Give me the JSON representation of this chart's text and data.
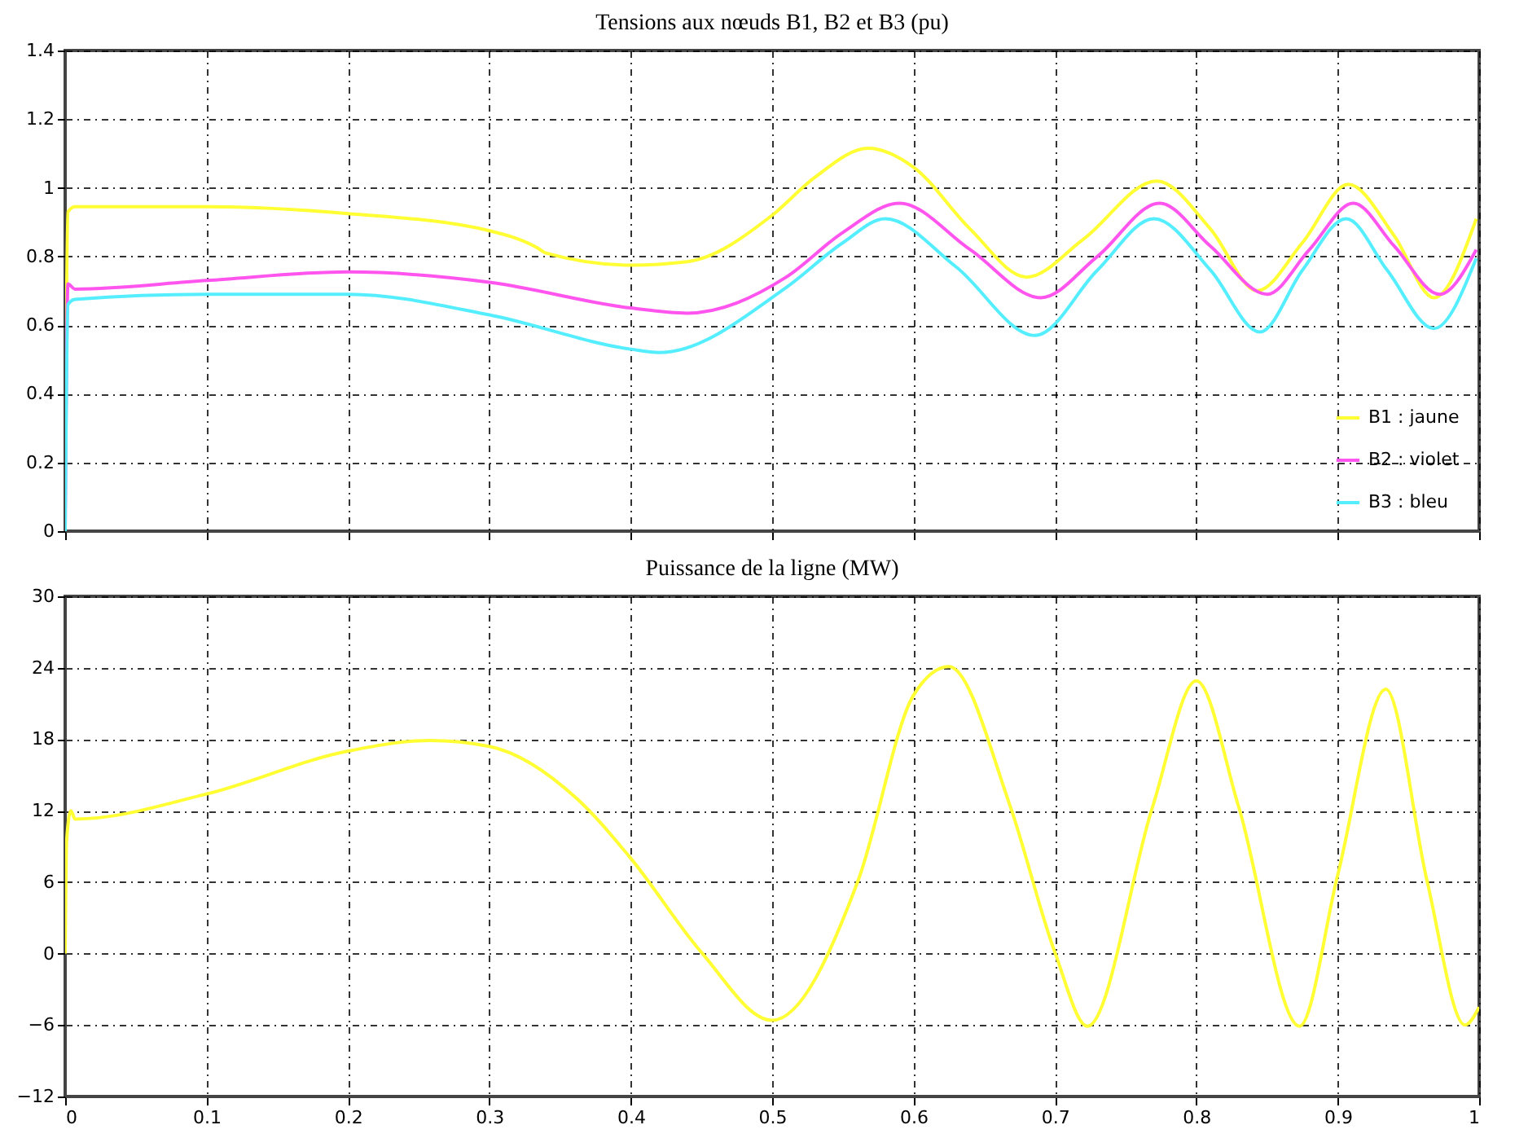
{
  "chart_data": [
    {
      "type": "line",
      "title": "Tensions aux nœuds B1, B2 et B3 (pu)",
      "xlim": [
        0,
        1
      ],
      "xticks": [
        0,
        0.1,
        0.2,
        0.3,
        0.4,
        0.5,
        0.6,
        0.7,
        0.8,
        0.9,
        1
      ],
      "ylim": [
        0,
        1.4
      ],
      "yticks": [
        0,
        0.2,
        0.4,
        0.6,
        0.8,
        1,
        1.2,
        1.4
      ],
      "tick_labels": "y",
      "grid": true,
      "legend": "bottom right",
      "series": [
        {
          "name": "B1 : jaune",
          "color": "#ffff33",
          "x": [
            0,
            0.002,
            0.007,
            0.1,
            0.2,
            0.3,
            0.334,
            0.34,
            0.4,
            0.44,
            0.5,
            0.53,
            0.568,
            0.6,
            0.64,
            0.68,
            0.72,
            0.772,
            0.81,
            0.843,
            0.875,
            0.9075,
            0.94,
            0.968,
            0.998
          ],
          "values": [
            0.2,
            0.93,
            0.945,
            0.945,
            0.925,
            0.875,
            0.825,
            0.81,
            0.775,
            0.785,
            0.92,
            1.03,
            1.115,
            1.06,
            0.88,
            0.74,
            0.85,
            1.02,
            0.88,
            0.7,
            0.84,
            1.01,
            0.86,
            0.68,
            0.91
          ]
        },
        {
          "name": "B2 : violet",
          "color": "#ff55ee",
          "x": [
            0,
            0.002,
            0.007,
            0.1,
            0.2,
            0.3,
            0.4,
            0.44,
            0.51,
            0.55,
            0.59,
            0.64,
            0.69,
            0.73,
            0.774,
            0.81,
            0.85,
            0.88,
            0.911,
            0.94,
            0.972,
            0.998
          ],
          "values": [
            0,
            0.72,
            0.705,
            0.73,
            0.755,
            0.725,
            0.65,
            0.635,
            0.74,
            0.87,
            0.955,
            0.82,
            0.68,
            0.8,
            0.955,
            0.83,
            0.69,
            0.82,
            0.955,
            0.83,
            0.69,
            0.82
          ]
        },
        {
          "name": "B3 : bleu",
          "color": "#55eeff",
          "x": [
            0,
            0.002,
            0.007,
            0.1,
            0.2,
            0.3,
            0.4,
            0.42,
            0.51,
            0.55,
            0.58,
            0.63,
            0.686,
            0.73,
            0.77,
            0.81,
            0.845,
            0.875,
            0.906,
            0.935,
            0.968,
            0.998
          ],
          "values": [
            0,
            0.66,
            0.675,
            0.69,
            0.69,
            0.63,
            0.53,
            0.52,
            0.71,
            0.84,
            0.91,
            0.77,
            0.57,
            0.76,
            0.91,
            0.76,
            0.58,
            0.76,
            0.91,
            0.76,
            0.59,
            0.795
          ]
        }
      ]
    },
    {
      "type": "line",
      "title": "Puissance de la ligne (MW)",
      "xlim": [
        0,
        1
      ],
      "xticks": [
        0,
        0.1,
        0.2,
        0.3,
        0.4,
        0.5,
        0.6,
        0.7,
        0.8,
        0.9,
        1
      ],
      "ylim": [
        -12,
        30
      ],
      "yticks": [
        -12,
        -6,
        0,
        6,
        12,
        18,
        24,
        30
      ],
      "grid": true,
      "series": [
        {
          "color": "#ffff33",
          "x": [
            0,
            0.001,
            0.004,
            0.007,
            0.1,
            0.2,
            0.258,
            0.3,
            0.362,
            0.4,
            0.45,
            0.5,
            0.561,
            0.6,
            0.625,
            0.668,
            0.7,
            0.723,
            0.769,
            0.8,
            0.83,
            0.873,
            0.9,
            0.934,
            0.963,
            0.99,
            1.0
          ],
          "values": [
            0,
            9.4,
            12,
            11.3,
            13.4,
            17,
            17.9,
            17.4,
            13,
            8,
            0.1,
            -5.6,
            6.2,
            21.7,
            24.1,
            12.5,
            0.1,
            -6.1,
            12.3,
            22.9,
            12.3,
            -6.1,
            6.6,
            22.2,
            6.2,
            -6,
            -4.5
          ]
        }
      ]
    }
  ]
}
